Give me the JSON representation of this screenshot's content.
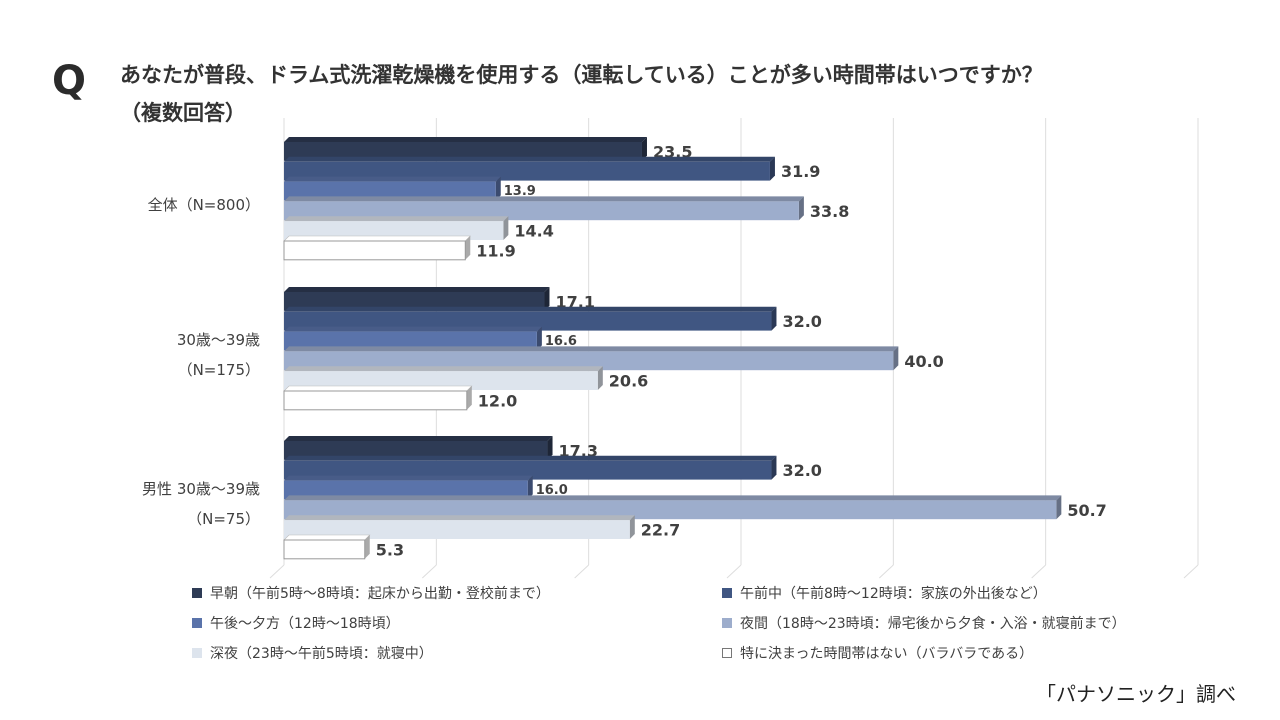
{
  "question": {
    "mark": "Q",
    "line1": "あなたが普段、ドラム式洗濯乾燥機を使用する（運転している）ことが多い時間帯はいつですか？",
    "line2": "（複数回答）"
  },
  "source": "「パナソニック」調べ",
  "colors": {
    "early_morning": "#2e3b55",
    "morning": "#405682",
    "afternoon": "#5a73aa",
    "evening": "#9dadcc",
    "late_night": "#dde4ed",
    "none": "#ffffff"
  },
  "chart_data": {
    "type": "bar",
    "orientation": "horizontal",
    "xlim": [
      0,
      60
    ],
    "grid": true,
    "legend_position": "bottom",
    "groups": [
      {
        "label_lines": [
          "全体（N=800）"
        ]
      },
      {
        "label_lines": [
          "30歳～39歳",
          "（N=175）"
        ]
      },
      {
        "label_lines": [
          "男性 30歳～39歳",
          "（N=75）"
        ]
      }
    ],
    "series": [
      {
        "name": "早朝（午前5時～8時頃：起床から出勤・登校前まで）",
        "color_key": "early_morning",
        "values": [
          23.5,
          17.1,
          17.3
        ]
      },
      {
        "name": "午前中（午前8時～12時頃：家族の外出後など）",
        "color_key": "morning",
        "values": [
          31.9,
          32.0,
          32.0
        ]
      },
      {
        "name": "午後～夕方（12時～18時頃）",
        "color_key": "afternoon",
        "values": [
          13.9,
          16.6,
          16.0
        ]
      },
      {
        "name": "夜間（18時～23時頃：帰宅後から夕食・入浴・就寝前まで）",
        "color_key": "evening",
        "values": [
          33.8,
          40.0,
          50.7
        ]
      },
      {
        "name": "深夜（23時～午前5時頃：就寝中）",
        "color_key": "late_night",
        "values": [
          14.4,
          20.6,
          22.7
        ]
      },
      {
        "name": "特に決まった時間帯はない（バラバラである）",
        "color_key": "none",
        "values": [
          11.9,
          12.0,
          5.3
        ]
      }
    ]
  }
}
